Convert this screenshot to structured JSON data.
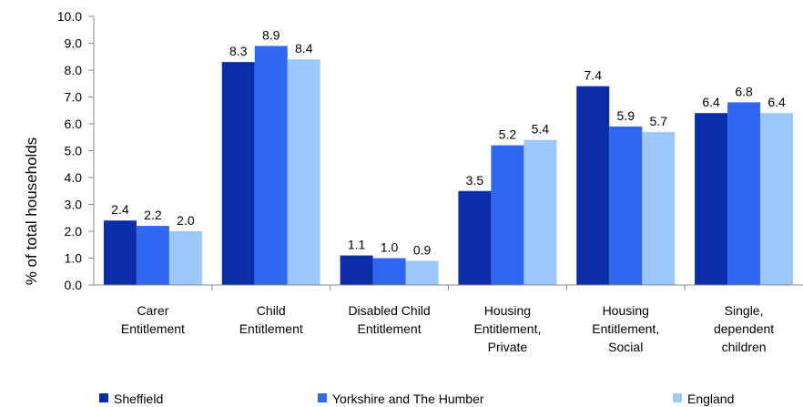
{
  "chart_data": {
    "type": "bar",
    "ylabel": "% of total households",
    "xlabel": "",
    "ylim": [
      0,
      10
    ],
    "yticks": [
      "0.0",
      "1.0",
      "2.0",
      "3.0",
      "4.0",
      "5.0",
      "6.0",
      "7.0",
      "8.0",
      "9.0",
      "10.0"
    ],
    "grid": false,
    "legend_position": "bottom",
    "categories": [
      [
        "Carer",
        "Entitlement"
      ],
      [
        "Child",
        "Entitlement"
      ],
      [
        "Disabled Child",
        "Entitlement"
      ],
      [
        "Housing",
        "Entitlement,",
        "Private"
      ],
      [
        "Housing",
        "Entitlement,",
        "Social"
      ],
      [
        "Single,",
        "dependent",
        "children"
      ]
    ],
    "series": [
      {
        "name": "Sheffield",
        "color": "#0a2ea8",
        "values": [
          2.4,
          8.3,
          1.1,
          3.5,
          7.4,
          6.4
        ],
        "labels": [
          "2.4",
          "8.3",
          "1.1",
          "3.5",
          "7.4",
          "6.4"
        ]
      },
      {
        "name": "Yorkshire and The Humber",
        "color": "#2f66f2",
        "values": [
          2.2,
          8.9,
          1.0,
          5.2,
          5.9,
          6.8
        ],
        "labels": [
          "2.2",
          "8.9",
          "1.0",
          "5.2",
          "5.9",
          "6.8"
        ]
      },
      {
        "name": "England",
        "color": "#9cc8fb",
        "values": [
          2.0,
          8.4,
          0.9,
          5.4,
          5.7,
          6.4
        ],
        "labels": [
          "2.0",
          "8.4",
          "0.9",
          "5.4",
          "5.7",
          "6.4"
        ]
      }
    ]
  }
}
